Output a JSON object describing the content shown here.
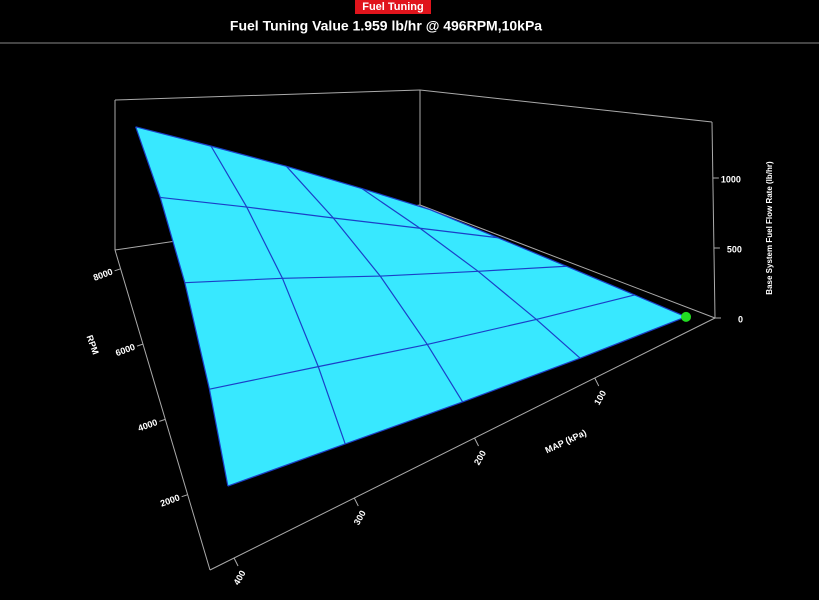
{
  "header": {
    "tab": "Fuel Tuning",
    "title": "Fuel Tuning Value 1.959 lb/hr @ 496RPM,10kPa"
  },
  "chart_data": {
    "type": "surface",
    "xlabel": "MAP (kPa)",
    "ylabel": "RPM",
    "zlabel": "Base System Fuel Flow Rate (lb/hr)",
    "x": [
      10,
      100,
      200,
      300,
      400
    ],
    "y": [
      500,
      2000,
      4000,
      6000,
      8000
    ],
    "z": [
      [
        2,
        70,
        150,
        230,
        300
      ],
      [
        10,
        150,
        300,
        450,
        580
      ],
      [
        20,
        250,
        480,
        700,
        880
      ],
      [
        30,
        330,
        620,
        880,
        1100
      ],
      [
        40,
        400,
        740,
        1020,
        1260
      ]
    ],
    "xlim": [
      0,
      420
    ],
    "ylim": [
      0,
      8500
    ],
    "zlim": [
      0,
      1400
    ],
    "xticks": [
      100,
      200,
      300,
      400
    ],
    "yticks": [
      2000,
      4000,
      6000,
      8000
    ],
    "zticks": [
      0,
      500,
      1000
    ],
    "color": "#38e8ff",
    "line_color": "#1b3fc8",
    "marker": {
      "x": 10,
      "y": 496,
      "z": 1.959,
      "color": "#22dd22"
    }
  }
}
